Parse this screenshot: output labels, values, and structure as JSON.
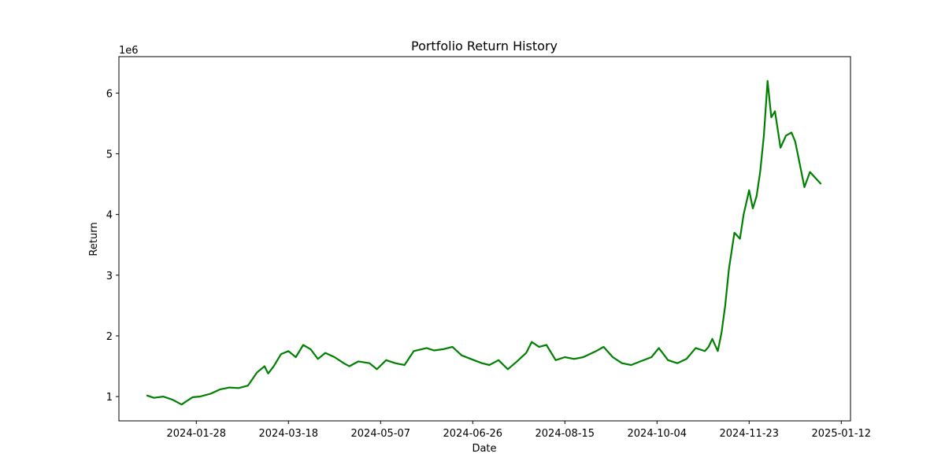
{
  "chart_data": {
    "type": "line",
    "title": "Portfolio Return History",
    "xlabel": "Date",
    "ylabel": "Return",
    "y_multiplier": "1e6",
    "x_ticks": [
      "2024-01-28",
      "2024-03-18",
      "2024-05-07",
      "2024-06-26",
      "2024-08-15",
      "2024-10-04",
      "2024-11-23",
      "2025-01-12"
    ],
    "y_ticks": [
      1,
      2,
      3,
      4,
      5,
      6
    ],
    "y_tick_labels": [
      "1",
      "2",
      "3",
      "4",
      "5",
      "6"
    ],
    "xlim": [
      "2023-12-17",
      "2025-01-17"
    ],
    "ylim": [
      0.6,
      6.6
    ],
    "grid": false,
    "colors": {
      "line": "#008000"
    },
    "series": [
      {
        "x": [
          "2024-01-01",
          "2024-01-05",
          "2024-01-10",
          "2024-01-15",
          "2024-01-20",
          "2024-01-23",
          "2024-01-26",
          "2024-01-30",
          "2024-02-05",
          "2024-02-10",
          "2024-02-15",
          "2024-02-20",
          "2024-02-25",
          "2024-03-01",
          "2024-03-05",
          "2024-03-07",
          "2024-03-10",
          "2024-03-14",
          "2024-03-18",
          "2024-03-22",
          "2024-03-26",
          "2024-03-30",
          "2024-04-03",
          "2024-04-07",
          "2024-04-12",
          "2024-04-17",
          "2024-04-20",
          "2024-04-25",
          "2024-05-01",
          "2024-05-05",
          "2024-05-10",
          "2024-05-15",
          "2024-05-20",
          "2024-05-25",
          "2024-06-01",
          "2024-06-05",
          "2024-06-10",
          "2024-06-15",
          "2024-06-20",
          "2024-06-25",
          "2024-07-01",
          "2024-07-05",
          "2024-07-10",
          "2024-07-15",
          "2024-07-20",
          "2024-07-25",
          "2024-07-28",
          "2024-08-01",
          "2024-08-05",
          "2024-08-10",
          "2024-08-15",
          "2024-08-20",
          "2024-08-25",
          "2024-09-01",
          "2024-09-05",
          "2024-09-10",
          "2024-09-15",
          "2024-09-20",
          "2024-09-25",
          "2024-10-01",
          "2024-10-05",
          "2024-10-10",
          "2024-10-15",
          "2024-10-20",
          "2024-10-25",
          "2024-10-30",
          "2024-11-01",
          "2024-11-03",
          "2024-11-06",
          "2024-11-08",
          "2024-11-10",
          "2024-11-12",
          "2024-11-15",
          "2024-11-18",
          "2024-11-20",
          "2024-11-23",
          "2024-11-25",
          "2024-11-27",
          "2024-11-29",
          "2024-12-01",
          "2024-12-03",
          "2024-12-05",
          "2024-12-07",
          "2024-12-10",
          "2024-12-13",
          "2024-12-16",
          "2024-12-18",
          "2024-12-20",
          "2024-12-23",
          "2024-12-26",
          "2024-12-29",
          "2025-01-01"
        ],
        "y": [
          1.02,
          0.98,
          1.0,
          0.95,
          0.87,
          0.93,
          0.99,
          1.0,
          1.05,
          1.12,
          1.15,
          1.14,
          1.18,
          1.4,
          1.5,
          1.38,
          1.5,
          1.7,
          1.75,
          1.65,
          1.85,
          1.78,
          1.62,
          1.72,
          1.65,
          1.55,
          1.5,
          1.58,
          1.55,
          1.45,
          1.6,
          1.55,
          1.52,
          1.75,
          1.8,
          1.76,
          1.78,
          1.82,
          1.68,
          1.62,
          1.55,
          1.52,
          1.6,
          1.45,
          1.58,
          1.72,
          1.9,
          1.82,
          1.85,
          1.6,
          1.65,
          1.62,
          1.65,
          1.75,
          1.82,
          1.65,
          1.55,
          1.52,
          1.58,
          1.65,
          1.8,
          1.6,
          1.55,
          1.62,
          1.8,
          1.75,
          1.82,
          1.95,
          1.75,
          2.05,
          2.5,
          3.1,
          3.7,
          3.6,
          4.0,
          4.4,
          4.1,
          4.3,
          4.7,
          5.3,
          6.2,
          5.6,
          5.7,
          5.1,
          5.3,
          5.35,
          5.2,
          4.9,
          4.45,
          4.7,
          4.6,
          4.5
        ]
      }
    ]
  }
}
